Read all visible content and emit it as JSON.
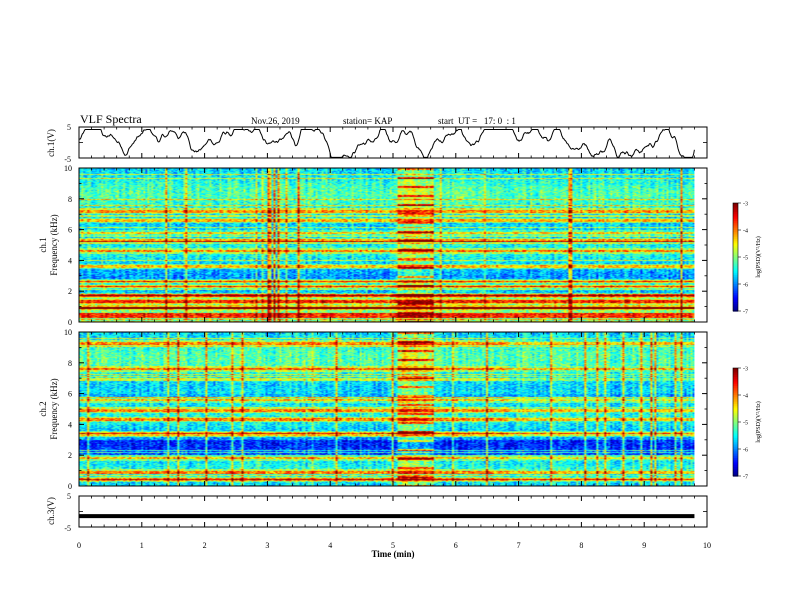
{
  "header": {
    "title": "VLF Spectra",
    "date": "Nov.26, 2019",
    "station": "station= KAP",
    "start": "start  UT =   17: 0  : 1"
  },
  "chart_data": [
    {
      "type": "line",
      "name": "ch1-waveform",
      "ylabel": "ch.1(V)",
      "ylim": [
        -5,
        5
      ],
      "y_ticks": [
        "5",
        "-5"
      ],
      "xlim": [
        0,
        10
      ]
    },
    {
      "type": "heatmap",
      "name": "ch1-spectrogram",
      "ylabel": "ch.1\nFrequency (kHz)",
      "ylabel_lines": [
        "ch.1",
        "Frequency (kHz)"
      ],
      "ylim": [
        0,
        10
      ],
      "y_ticks": [
        "0",
        "2",
        "4",
        "6",
        "8",
        "10"
      ],
      "xlim": [
        0,
        10
      ],
      "data_extent_min": [
        0,
        9.8
      ],
      "colorbar": {
        "label": "log(PSD)(V²/Hz)",
        "range": [
          -7,
          -3
        ],
        "ticks": [
          "-3",
          "-4",
          "-5",
          "-6",
          "-7"
        ]
      },
      "bands_khz": [
        0.4,
        0.9,
        1.3,
        1.7,
        2.3,
        2.6,
        3.6,
        4.6,
        5.3,
        5.8,
        6.6,
        7.2
      ]
    },
    {
      "type": "heatmap",
      "name": "ch2-spectrogram",
      "ylabel": "ch.2\nFrequency (kHz)",
      "ylabel_lines": [
        "ch.2",
        "Frequency (kHz)"
      ],
      "ylim": [
        0,
        10
      ],
      "y_ticks": [
        "0",
        "2",
        "4",
        "6",
        "8",
        "10"
      ],
      "xlim": [
        0,
        10
      ],
      "data_extent_min": [
        0,
        9.8
      ],
      "colorbar": {
        "label": "log(PSD)(V²/Hz)",
        "range": [
          -7,
          -3
        ],
        "ticks": [
          "-3",
          "-4",
          "-5",
          "-6",
          "-7"
        ]
      },
      "bands_khz": [
        0.4,
        0.9,
        1.8,
        3.4,
        4.3,
        4.9,
        5.6,
        7.6,
        9.3
      ]
    },
    {
      "type": "line",
      "name": "ch3-waveform",
      "ylabel": "ch.3(V)",
      "ylim": [
        -5,
        5
      ],
      "y_ticks": [
        "5",
        "-5"
      ],
      "xlim": [
        0,
        10
      ],
      "level_v": -1.5,
      "xlabel": "Time  (min)",
      "x_ticks": [
        "0",
        "1",
        "2",
        "3",
        "4",
        "5",
        "6",
        "7",
        "8",
        "9",
        "10"
      ]
    }
  ],
  "colors": {
    "colormap": [
      "#00007f",
      "#0000ff",
      "#007fff",
      "#00ffff",
      "#7fff7f",
      "#ffff00",
      "#ff7f00",
      "#ff0000",
      "#7f0000"
    ],
    "axes": "#000000",
    "trace": "#000000"
  }
}
